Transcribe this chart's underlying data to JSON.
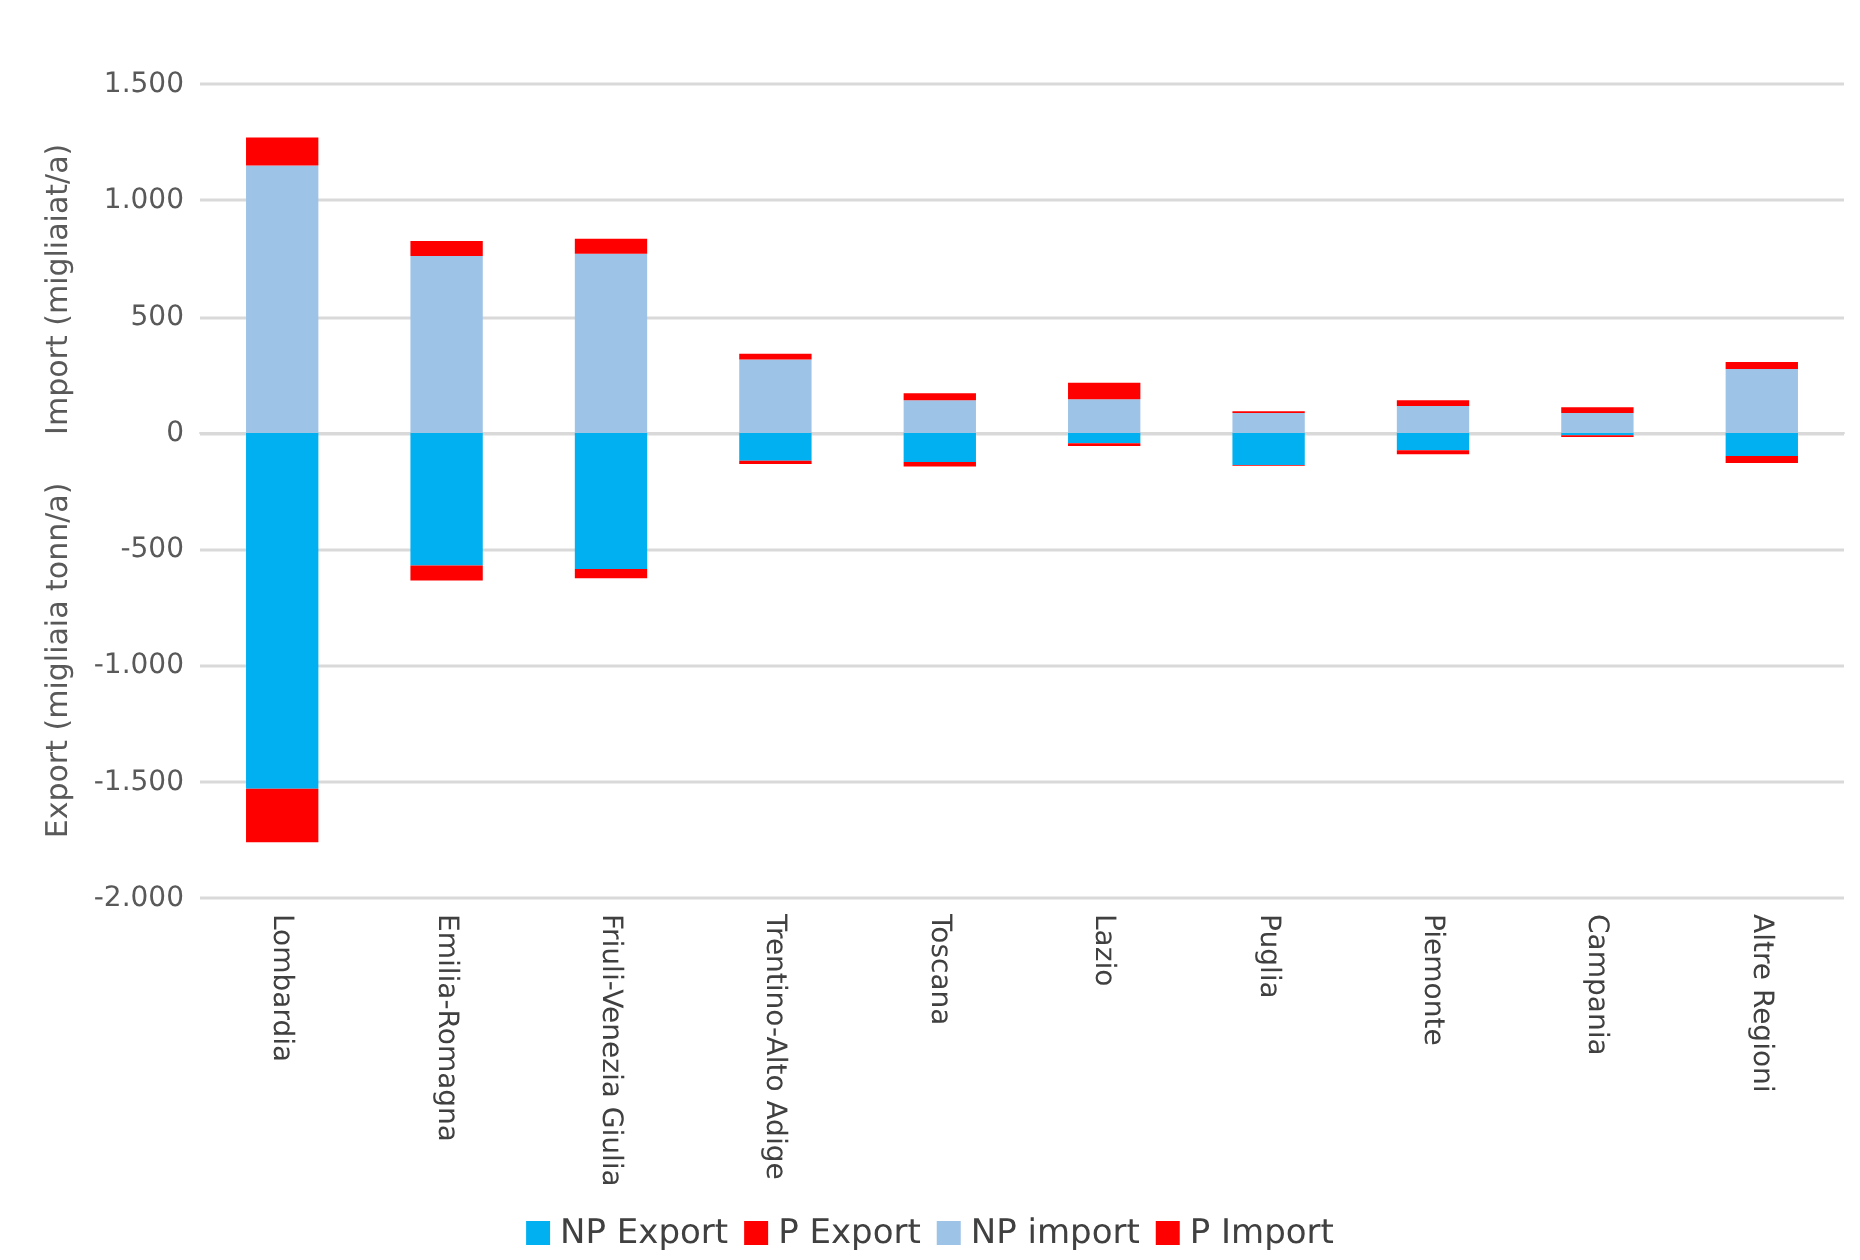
{
  "chart_data": {
    "type": "bar",
    "stacked": true,
    "ylabel": "Export (migliaia tonn/a)     Import (migliaiat/a)",
    "categories": [
      "Lombardia",
      "Emilia-Romagna",
      "Friuli-Venezia Giulia",
      "Trentino-Alto Adige",
      "Toscana",
      "Lazio",
      "Puglia",
      "Piemonte",
      "Campania",
      "Altre Regioni"
    ],
    "series": [
      {
        "name": "NP Export",
        "color": "#00b0f0",
        "values": [
          -1530,
          -570,
          -585,
          -120,
          -125,
          -45,
          -138,
          -75,
          -10,
          -100
        ]
      },
      {
        "name": "P Export",
        "color": "#ff0000",
        "values": [
          -230,
          -65,
          -40,
          -14,
          -20,
          -12,
          -3,
          -17,
          -8,
          -30
        ]
      },
      {
        "name": "NP import",
        "color": "#9dc3e6",
        "values": [
          1150,
          760,
          770,
          315,
          140,
          145,
          85,
          115,
          85,
          275
        ]
      },
      {
        "name": "P Import",
        "color": "#ff0000",
        "values": [
          120,
          65,
          65,
          25,
          30,
          70,
          8,
          25,
          25,
          30
        ]
      }
    ],
    "ylim": [
      -2000,
      1500
    ],
    "yticks": [
      {
        "value": -2000,
        "label": "-2.000"
      },
      {
        "value": -1500,
        "label": "-1.500"
      },
      {
        "value": -1000,
        "label": "-1.000"
      },
      {
        "value": -500,
        "label": "-500"
      },
      0,
      500,
      {
        "value": 1000,
        "label": "1.000"
      },
      {
        "value": 1500,
        "label": "1.500"
      }
    ],
    "grid": "y",
    "legend": "bottom"
  }
}
